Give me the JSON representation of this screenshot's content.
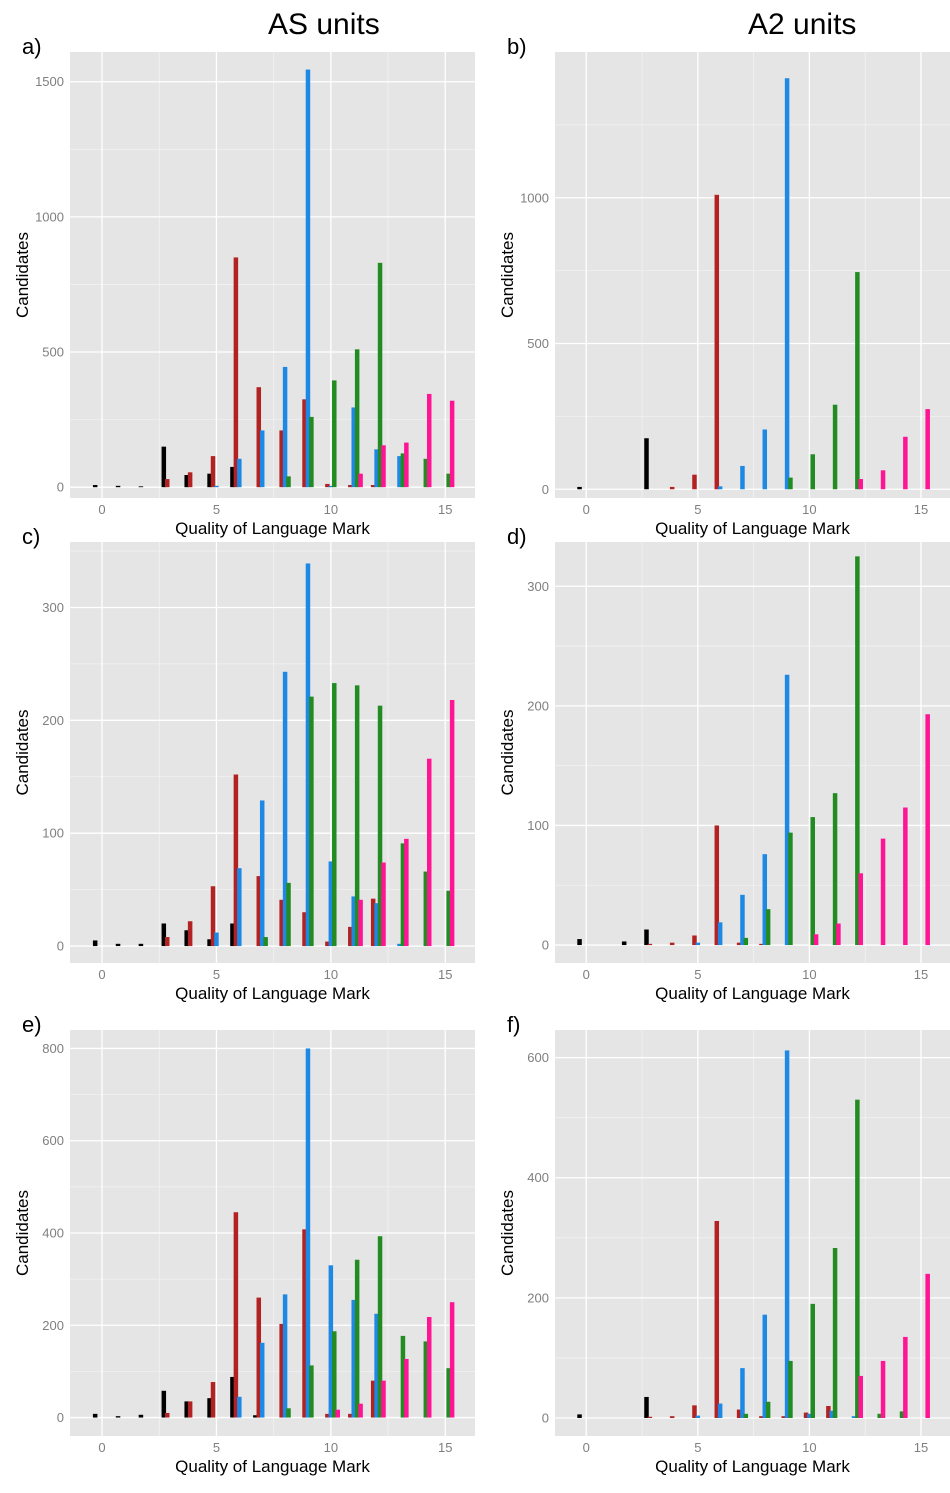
{
  "titles": {
    "left": "AS units",
    "right": "A2 units"
  },
  "colors": {
    "panel_bg": "#e5e5e5",
    "grid": "#ffffff",
    "black": "#000000",
    "red": "#b22222",
    "blue": "#1e88e5",
    "green": "#228b22",
    "pink": "#ff1493"
  },
  "chart_data": [
    {
      "id": "a",
      "panel_label": "a)",
      "type": "bar",
      "xlabel": "Quality of Language Mark",
      "ylabel": "Candidates",
      "xlim": [
        -1.4,
        16.3
      ],
      "ylim": [
        -40,
        1610
      ],
      "xticks": [
        0,
        5,
        10,
        15
      ],
      "yticks": [
        0,
        500,
        1000,
        1500
      ],
      "series": [
        {
          "color": "black",
          "x": [
            0,
            1,
            2,
            3,
            4,
            5,
            6
          ],
          "values": [
            8,
            5,
            3,
            150,
            45,
            50,
            75
          ]
        },
        {
          "color": "red",
          "x": [
            3,
            4,
            5,
            6,
            7,
            8,
            9,
            10,
            11,
            12
          ],
          "values": [
            30,
            55,
            115,
            850,
            370,
            210,
            325,
            12,
            8,
            8
          ]
        },
        {
          "color": "blue",
          "x": [
            5,
            6,
            7,
            8,
            9,
            10,
            11,
            12,
            13
          ],
          "values": [
            5,
            105,
            210,
            445,
            1545,
            5,
            295,
            140,
            115
          ]
        },
        {
          "color": "green",
          "x": [
            8,
            9,
            10,
            11,
            12,
            13,
            14,
            15
          ],
          "values": [
            40,
            260,
            395,
            510,
            830,
            125,
            105,
            50
          ]
        },
        {
          "color": "pink",
          "x": [
            11,
            12,
            13,
            14,
            15
          ],
          "values": [
            50,
            155,
            165,
            345,
            320
          ]
        }
      ]
    },
    {
      "id": "b",
      "panel_label": "b)",
      "type": "bar",
      "xlabel": "Quality of Language Mark",
      "ylabel": "Candidates",
      "xlim": [
        -1.4,
        16.3
      ],
      "ylim": [
        -30,
        1500
      ],
      "xticks": [
        0,
        5,
        10,
        15
      ],
      "yticks": [
        0,
        500,
        1000
      ],
      "series": [
        {
          "color": "black",
          "x": [
            0,
            3
          ],
          "values": [
            8,
            175
          ]
        },
        {
          "color": "red",
          "x": [
            4,
            5,
            6
          ],
          "values": [
            8,
            50,
            1010
          ]
        },
        {
          "color": "blue",
          "x": [
            6,
            7,
            8,
            9
          ],
          "values": [
            10,
            80,
            205,
            1410
          ]
        },
        {
          "color": "green",
          "x": [
            9,
            10,
            11,
            12
          ],
          "values": [
            40,
            120,
            290,
            745
          ]
        },
        {
          "color": "pink",
          "x": [
            12,
            13,
            14,
            15
          ],
          "values": [
            35,
            65,
            180,
            275
          ]
        }
      ]
    },
    {
      "id": "c",
      "panel_label": "c)",
      "type": "bar",
      "xlabel": "Quality of Language Mark",
      "ylabel": "Candidates",
      "xlim": [
        -1.4,
        16.3
      ],
      "ylim": [
        -15,
        358
      ],
      "xticks": [
        0,
        5,
        10,
        15
      ],
      "yticks": [
        0,
        100,
        200,
        300
      ],
      "series": [
        {
          "color": "black",
          "x": [
            0,
            1,
            2,
            3,
            4,
            5,
            6
          ],
          "values": [
            5,
            2,
            2,
            20,
            14,
            6,
            20
          ]
        },
        {
          "color": "red",
          "x": [
            3,
            4,
            5,
            6,
            7,
            8,
            9,
            10,
            11,
            12
          ],
          "values": [
            8,
            22,
            53,
            152,
            62,
            41,
            30,
            4,
            17,
            42
          ]
        },
        {
          "color": "blue",
          "x": [
            5,
            6,
            7,
            8,
            9,
            10,
            11,
            12,
            13
          ],
          "values": [
            12,
            69,
            129,
            243,
            339,
            75,
            44,
            38,
            2
          ]
        },
        {
          "color": "green",
          "x": [
            7,
            8,
            9,
            10,
            11,
            12,
            13,
            14,
            15
          ],
          "values": [
            8,
            56,
            221,
            233,
            231,
            213,
            91,
            66,
            49
          ]
        },
        {
          "color": "pink",
          "x": [
            11,
            12,
            13,
            14,
            15
          ],
          "values": [
            41,
            74,
            95,
            166,
            218
          ]
        }
      ]
    },
    {
      "id": "d",
      "panel_label": "d)",
      "type": "bar",
      "xlabel": "Quality of Language Mark",
      "ylabel": "Candidates",
      "xlim": [
        -1.4,
        16.3
      ],
      "ylim": [
        -15,
        337
      ],
      "xticks": [
        0,
        5,
        10,
        15
      ],
      "yticks": [
        0,
        100,
        200,
        300
      ],
      "series": [
        {
          "color": "black",
          "x": [
            0,
            2,
            3
          ],
          "values": [
            5,
            3,
            13
          ]
        },
        {
          "color": "red",
          "x": [
            3,
            4,
            5,
            6,
            7,
            8
          ],
          "values": [
            1,
            2,
            8,
            100,
            2,
            1
          ]
        },
        {
          "color": "blue",
          "x": [
            5,
            6,
            7,
            8,
            9
          ],
          "values": [
            2,
            19,
            42,
            76,
            226
          ]
        },
        {
          "color": "green",
          "x": [
            7,
            8,
            9,
            10,
            11,
            12
          ],
          "values": [
            6,
            30,
            94,
            107,
            127,
            325
          ]
        },
        {
          "color": "pink",
          "x": [
            10,
            11,
            12,
            13,
            14,
            15
          ],
          "values": [
            9,
            18,
            60,
            89,
            115,
            193
          ]
        }
      ]
    },
    {
      "id": "e",
      "panel_label": "e)",
      "type": "bar",
      "xlabel": "Quality of Language Mark",
      "ylabel": "Candidates",
      "xlim": [
        -1.4,
        16.3
      ],
      "ylim": [
        -40,
        840
      ],
      "xticks": [
        0,
        5,
        10,
        15
      ],
      "yticks": [
        0,
        200,
        400,
        600,
        800
      ],
      "series": [
        {
          "color": "black",
          "x": [
            0,
            1,
            2,
            3,
            4,
            5,
            6,
            7
          ],
          "values": [
            8,
            3,
            6,
            58,
            35,
            42,
            88,
            5
          ]
        },
        {
          "color": "red",
          "x": [
            3,
            4,
            5,
            6,
            7,
            8,
            9,
            10,
            11,
            12
          ],
          "values": [
            10,
            35,
            77,
            445,
            260,
            203,
            408,
            8,
            8,
            80
          ]
        },
        {
          "color": "blue",
          "x": [
            6,
            7,
            8,
            9,
            10,
            11,
            12
          ],
          "values": [
            45,
            162,
            267,
            800,
            330,
            255,
            225
          ]
        },
        {
          "color": "green",
          "x": [
            8,
            9,
            10,
            11,
            12,
            13,
            14,
            15
          ],
          "values": [
            20,
            113,
            187,
            342,
            393,
            177,
            165,
            107
          ]
        },
        {
          "color": "pink",
          "x": [
            10,
            11,
            12,
            13,
            14,
            15
          ],
          "values": [
            17,
            30,
            80,
            127,
            218,
            250
          ]
        }
      ]
    },
    {
      "id": "f",
      "panel_label": "f)",
      "type": "bar",
      "xlabel": "Quality of Language Mark",
      "ylabel": "Candidates",
      "xlim": [
        -1.4,
        16.3
      ],
      "ylim": [
        -30,
        646
      ],
      "xticks": [
        0,
        5,
        10,
        15
      ],
      "yticks": [
        0,
        200,
        400,
        600
      ],
      "series": [
        {
          "color": "black",
          "x": [
            0,
            3
          ],
          "values": [
            6,
            35
          ]
        },
        {
          "color": "red",
          "x": [
            3,
            4,
            5,
            6,
            7,
            8,
            9,
            10,
            11
          ],
          "values": [
            2,
            3,
            21,
            328,
            14,
            3,
            3,
            9,
            20
          ]
        },
        {
          "color": "blue",
          "x": [
            5,
            6,
            7,
            8,
            9,
            10,
            11,
            12
          ],
          "values": [
            4,
            24,
            83,
            172,
            612,
            7,
            12,
            3
          ]
        },
        {
          "color": "green",
          "x": [
            7,
            8,
            9,
            10,
            11,
            12,
            13,
            14
          ],
          "values": [
            7,
            27,
            95,
            190,
            283,
            530,
            7,
            11
          ]
        },
        {
          "color": "pink",
          "x": [
            12,
            13,
            14,
            15
          ],
          "values": [
            70,
            95,
            135,
            240
          ]
        }
      ]
    }
  ]
}
